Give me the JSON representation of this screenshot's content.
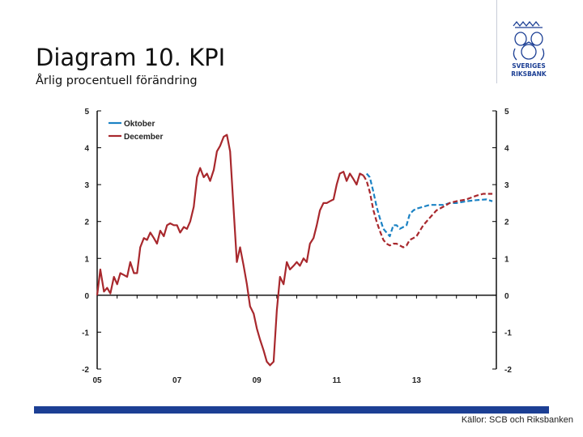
{
  "page": {
    "title": "Diagram 10. KPI",
    "subtitle": "Årlig procentuell förändring",
    "source": "Källor: SCB och Riksbanken",
    "brand": {
      "logo_line1": "SVERIGES",
      "logo_line2": "RIKSBANK",
      "color": "#1c3f94"
    }
  },
  "chart_data": {
    "type": "line",
    "title": "",
    "xlabel": "",
    "ylabel": "",
    "x_tick_labels": [
      "05",
      "07",
      "09",
      "11",
      "13"
    ],
    "x_tick_values": [
      2005,
      2007,
      2009,
      2011,
      2013
    ],
    "xlim": [
      2005,
      2015
    ],
    "ylim": [
      -2,
      5
    ],
    "y_ticks": [
      -2,
      -1,
      0,
      1,
      2,
      3,
      4,
      5
    ],
    "y_axis_both_sides": true,
    "grid": false,
    "zero_line": true,
    "legend_position": "top-left",
    "series": [
      {
        "name": "Oktober",
        "color": "#1b82c4",
        "style": "dashed",
        "x": [
          2011.75,
          2011.83,
          2011.92,
          2012.0,
          2012.08,
          2012.17,
          2012.25,
          2012.33,
          2012.42,
          2012.5,
          2012.58,
          2012.67,
          2012.75,
          2012.83,
          2012.92,
          2013.0,
          2013.17,
          2013.33,
          2013.5,
          2013.67,
          2013.83,
          2014.0,
          2014.25,
          2014.5,
          2014.75,
          2014.9
        ],
        "y": [
          3.3,
          3.2,
          2.8,
          2.4,
          2.1,
          1.8,
          1.7,
          1.6,
          1.9,
          1.9,
          1.8,
          1.85,
          1.9,
          2.2,
          2.3,
          2.35,
          2.4,
          2.45,
          2.45,
          2.45,
          2.5,
          2.5,
          2.55,
          2.58,
          2.6,
          2.55
        ]
      },
      {
        "name": "December",
        "color": "#a8282d",
        "style": "solid",
        "x": [
          2005.0,
          2005.08,
          2005.17,
          2005.25,
          2005.33,
          2005.42,
          2005.5,
          2005.58,
          2005.67,
          2005.75,
          2005.83,
          2005.92,
          2006.0,
          2006.08,
          2006.17,
          2006.25,
          2006.33,
          2006.42,
          2006.5,
          2006.58,
          2006.67,
          2006.75,
          2006.83,
          2006.92,
          2007.0,
          2007.08,
          2007.17,
          2007.25,
          2007.33,
          2007.42,
          2007.5,
          2007.58,
          2007.67,
          2007.75,
          2007.83,
          2007.92,
          2008.0,
          2008.08,
          2008.17,
          2008.25,
          2008.33,
          2008.42,
          2008.5,
          2008.58,
          2008.67,
          2008.75,
          2008.83,
          2008.92,
          2009.0,
          2009.08,
          2009.17,
          2009.25,
          2009.33,
          2009.42,
          2009.5,
          2009.58,
          2009.67,
          2009.75,
          2009.83,
          2009.92,
          2010.0,
          2010.08,
          2010.17,
          2010.25,
          2010.33,
          2010.42,
          2010.5,
          2010.58,
          2010.67,
          2010.75,
          2010.83,
          2010.92,
          2011.0,
          2011.08,
          2011.17,
          2011.25,
          2011.33,
          2011.42,
          2011.5,
          2011.58,
          2011.67
        ],
        "y": [
          0.0,
          0.7,
          0.1,
          0.2,
          0.05,
          0.5,
          0.3,
          0.6,
          0.55,
          0.5,
          0.9,
          0.6,
          0.6,
          1.3,
          1.55,
          1.5,
          1.7,
          1.55,
          1.4,
          1.75,
          1.6,
          1.9,
          1.95,
          1.9,
          1.9,
          1.7,
          1.85,
          1.8,
          2.0,
          2.4,
          3.2,
          3.45,
          3.2,
          3.3,
          3.1,
          3.4,
          3.9,
          4.05,
          4.3,
          4.35,
          3.9,
          2.3,
          0.9,
          1.3,
          0.8,
          0.3,
          -0.3,
          -0.5,
          -0.9,
          -1.2,
          -1.5,
          -1.8,
          -1.9,
          -1.8,
          -0.4,
          0.5,
          0.3,
          0.9,
          0.7,
          0.8,
          0.9,
          0.8,
          1.0,
          0.9,
          1.4,
          1.55,
          1.9,
          2.3,
          2.5,
          2.5,
          2.55,
          2.6,
          3.0,
          3.3,
          3.35,
          3.1,
          3.3,
          3.15,
          3.0,
          3.3,
          3.25
        ]
      },
      {
        "name": "December (prognos)",
        "color": "#a8282d",
        "style": "dashed",
        "x": [
          2011.67,
          2011.75,
          2011.83,
          2011.92,
          2012.0,
          2012.08,
          2012.17,
          2012.25,
          2012.33,
          2012.42,
          2012.5,
          2012.58,
          2012.67,
          2012.75,
          2012.83,
          2012.92,
          2013.0,
          2013.17,
          2013.33,
          2013.5,
          2013.67,
          2013.83,
          2014.0,
          2014.25,
          2014.5,
          2014.67,
          2014.9
        ],
        "y": [
          3.25,
          3.1,
          2.8,
          2.3,
          2.0,
          1.75,
          1.5,
          1.4,
          1.35,
          1.4,
          1.4,
          1.35,
          1.3,
          1.35,
          1.5,
          1.55,
          1.6,
          1.9,
          2.1,
          2.3,
          2.4,
          2.5,
          2.55,
          2.6,
          2.7,
          2.75,
          2.75
        ]
      }
    ]
  }
}
